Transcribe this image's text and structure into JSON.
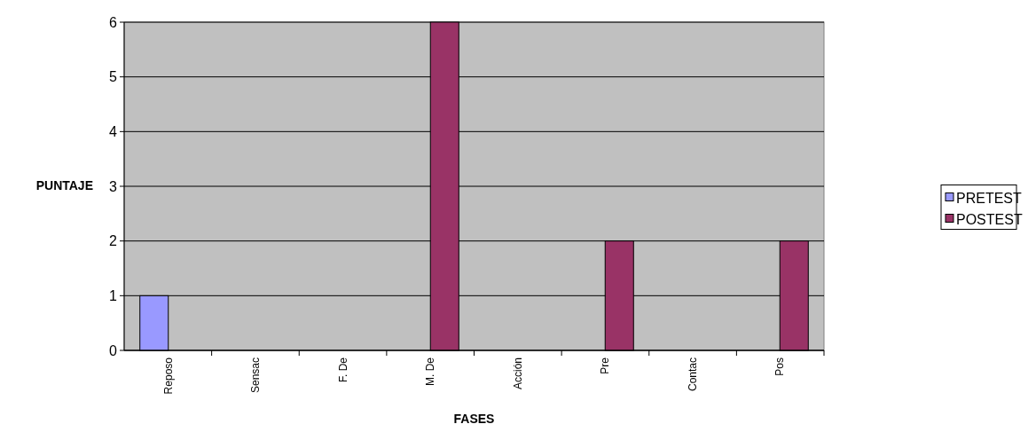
{
  "chart_data": {
    "type": "bar",
    "xlabel": "FASES",
    "ylabel": "PUNTAJE",
    "categories": [
      "Reposo",
      "Sensac",
      "F. De",
      "M. De",
      "Acción",
      "Pre",
      "Contac",
      "Pos"
    ],
    "series": [
      {
        "name": "PRETEST",
        "color": "#9999ff",
        "values": [
          1,
          0,
          0,
          0,
          0,
          0,
          0,
          0
        ]
      },
      {
        "name": "POSTEST",
        "color": "#993366",
        "values": [
          0,
          0,
          0,
          6,
          0,
          2,
          0,
          2
        ]
      }
    ],
    "ylim": [
      0,
      6
    ],
    "yticks": [
      0,
      1,
      2,
      3,
      4,
      5,
      6
    ],
    "grid": "y",
    "legend": "right"
  }
}
